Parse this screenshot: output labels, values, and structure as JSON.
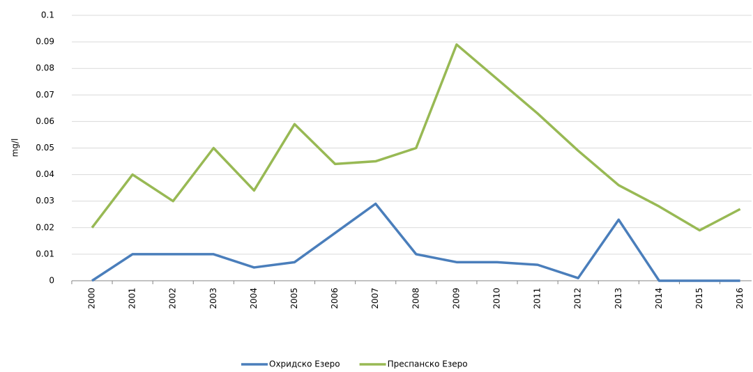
{
  "chart_data": {
    "type": "line",
    "y_label": "mg/l",
    "categories": [
      "2000",
      "2001",
      "2002",
      "2003",
      "2004",
      "2005",
      "2006",
      "2007",
      "2008",
      "2009",
      "2010",
      "2011",
      "2012",
      "2013",
      "2014",
      "2015",
      "2016"
    ],
    "series": [
      {
        "name": "Охридско Езеро",
        "color": "#4a7ebb",
        "values": [
          0,
          0.01,
          0.01,
          0.01,
          0.005,
          0.007,
          0.018,
          0.029,
          0.01,
          0.007,
          0.007,
          0.006,
          0.001,
          0.023,
          0,
          0,
          0
        ]
      },
      {
        "name": "Преспанско Езеро",
        "color": "#98b954",
        "values": [
          0.02,
          0.04,
          0.03,
          0.05,
          0.034,
          0.059,
          0.044,
          0.045,
          0.05,
          0.089,
          0.076,
          0.063,
          0.049,
          0.036,
          0.028,
          0.019,
          0.027
        ]
      }
    ],
    "ylim": [
      0,
      0.1
    ],
    "yticks": [
      0,
      0.01,
      0.02,
      0.03,
      0.04,
      0.05,
      0.06,
      0.07,
      0.08,
      0.09,
      0.1
    ],
    "grid": true,
    "legend": "bottom"
  }
}
